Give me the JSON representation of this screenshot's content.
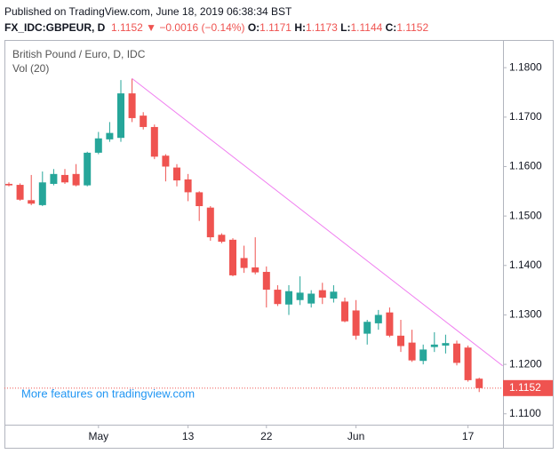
{
  "header": {
    "published": "Published on TradingView.com, June 18, 2019 06:38:34 BST",
    "symbol": "FX_IDC:GBPEUR, D",
    "arrow": "▼",
    "change": "−0.0016 (−0.14%)",
    "o_label": "O:",
    "h_label": "H:",
    "l_label": "L:",
    "c_label": "C:"
  },
  "chart_data": {
    "type": "candlestick",
    "title": "British Pound / Euro, D, IDC",
    "subtitle": "Vol (20)",
    "annotation": "More features on tradingview.com",
    "categories": [
      null,
      null,
      null,
      null,
      null,
      null,
      null,
      null,
      "May",
      null,
      null,
      null,
      null,
      null,
      null,
      null,
      "13",
      null,
      null,
      null,
      null,
      null,
      null,
      "22",
      null,
      null,
      null,
      null,
      null,
      null,
      null,
      "Jun",
      null,
      null,
      null,
      null,
      null,
      null,
      null,
      null,
      null,
      "17",
      null
    ],
    "open": [
      1.1565,
      1.1563,
      1.1532,
      1.1522,
      1.1565,
      1.1583,
      1.1585,
      1.1562,
      1.1628,
      1.1655,
      1.1658,
      1.1748,
      1.1703,
      1.168,
      1.1622,
      1.1598,
      1.1574,
      1.1548,
      1.1517,
      1.1462,
      1.1452,
      1.1415,
      1.1396,
      1.1387,
      1.1351,
      1.1321,
      1.133,
      1.1323,
      1.135,
      1.1333,
      1.1327,
      1.1309,
      1.1262,
      1.1283,
      1.1305,
      1.1258,
      1.1244,
      1.1207,
      1.1235,
      1.1238,
      1.1242,
      1.1234,
      1.1171
    ],
    "high": [
      1.1568,
      1.1566,
      1.1583,
      1.159,
      1.1595,
      1.1595,
      1.1605,
      1.163,
      1.167,
      1.169,
      1.1775,
      1.1778,
      1.171,
      1.1685,
      1.1625,
      1.1605,
      1.1585,
      1.155,
      1.152,
      1.1465,
      1.1455,
      1.144,
      1.1457,
      1.1398,
      1.136,
      1.136,
      1.1378,
      1.135,
      1.1365,
      1.136,
      1.1335,
      1.133,
      1.129,
      1.131,
      1.1315,
      1.129,
      1.127,
      1.124,
      1.1265,
      1.126,
      1.1248,
      1.1238,
      1.1173
    ],
    "low": [
      1.156,
      1.1531,
      1.1522,
      1.152,
      1.1562,
      1.1565,
      1.156,
      1.156,
      1.1625,
      1.165,
      1.165,
      1.169,
      1.1675,
      1.1615,
      1.157,
      1.156,
      1.153,
      1.149,
      1.145,
      1.1445,
      1.1378,
      1.1385,
      1.1382,
      1.1315,
      1.1318,
      1.13,
      1.132,
      1.1315,
      1.1322,
      1.1325,
      1.1285,
      1.125,
      1.124,
      1.127,
      1.1255,
      1.1225,
      1.1205,
      1.12,
      1.1225,
      1.1222,
      1.1198,
      1.1165,
      1.1144
    ],
    "close": [
      1.1562,
      1.1533,
      1.1525,
      1.1568,
      1.1585,
      1.1568,
      1.1562,
      1.1628,
      1.1657,
      1.1668,
      1.1748,
      1.1698,
      1.168,
      1.162,
      1.16,
      1.1572,
      1.1548,
      1.152,
      1.1457,
      1.1448,
      1.138,
      1.1395,
      1.1386,
      1.1351,
      1.1322,
      1.1348,
      1.1345,
      1.1343,
      1.1335,
      1.1347,
      1.1287,
      1.1258,
      1.1286,
      1.13,
      1.1258,
      1.1237,
      1.1208,
      1.123,
      1.124,
      1.1243,
      1.1203,
      1.1168,
      1.1152
    ],
    "up_color": "#26a69a",
    "down_color": "#ef5350",
    "trendline": {
      "from": [
        11,
        1.1778
      ],
      "to": [
        44.1,
        1.1197
      ],
      "color": "#f07ef0"
    },
    "ylim": [
      1.1078,
      1.1856
    ],
    "yticks": [
      {
        "value": 1.11,
        "label": "1.1100"
      },
      {
        "value": 1.12,
        "label": "1.1200"
      },
      {
        "value": 1.13,
        "label": "1.1300"
      },
      {
        "value": 1.14,
        "label": "1.1400"
      },
      {
        "value": 1.15,
        "label": "1.1500"
      },
      {
        "value": 1.16,
        "label": "1.1600"
      },
      {
        "value": 1.17,
        "label": "1.1700"
      },
      {
        "value": 1.18,
        "label": "1.1800"
      }
    ]
  }
}
